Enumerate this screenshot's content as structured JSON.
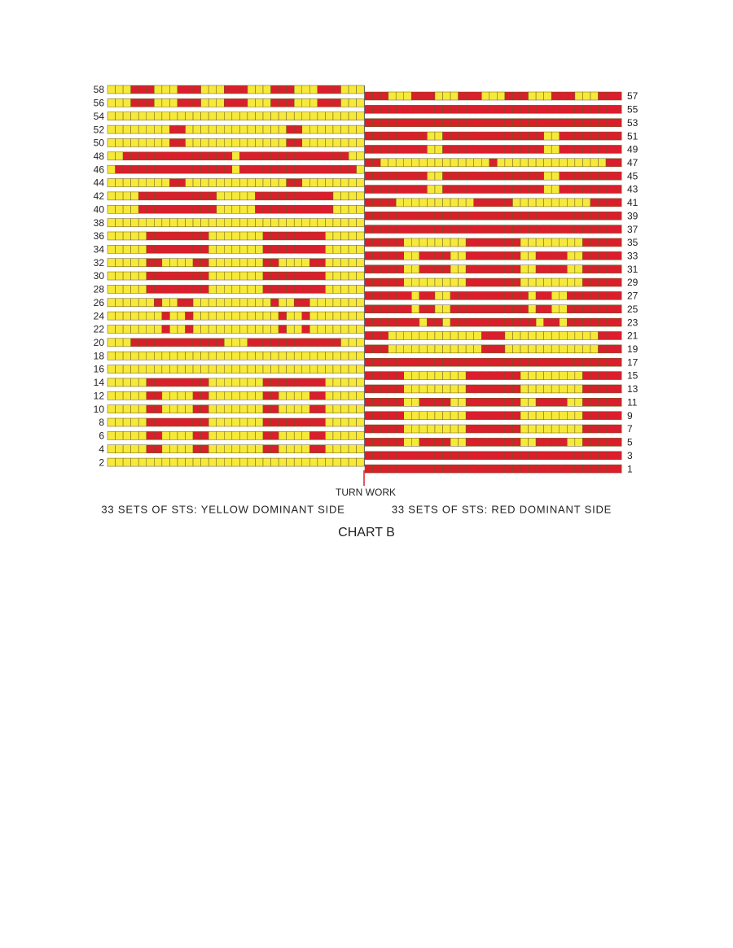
{
  "colors": {
    "Y": "#f6e93a",
    "R": "#d91f2c"
  },
  "left": {
    "caption": "33 SETS OF  STS: YELLOW DOMINANT SIDE",
    "rows": [
      {
        "label": "58",
        "cells": "YYYRRRYYYRRRYYYRRRYYYRRRYYYRRRYYY"
      },
      {
        "label": "56",
        "cells": "YYYRRRYYYRRRYYYRRRYYYRRRYYYRRRYYY"
      },
      {
        "label": "54",
        "cells": "YYYYYYYYYYYYYYYYYYYYYYYYYYYYYYYYY"
      },
      {
        "label": "52",
        "cells": "YYYYYYYYRRYYYYYYYYYYYYYRRYYYYYYYY"
      },
      {
        "label": "50",
        "cells": "YYYYYYYYRRYYYYYYYYYYYYYRRYYYYYYYY"
      },
      {
        "label": "48",
        "cells": "YYRRRRRRRRRRRRRRYRRRRRRRRRRRRRRYY"
      },
      {
        "label": "46",
        "cells": "YRRRRRRRRRRRRRRRYRRRRRRRRRRRRRRRY"
      },
      {
        "label": "44",
        "cells": "YYYYYYYYRRYYYYYYYYYYYYYRRYYYYYYYY"
      },
      {
        "label": "42",
        "cells": "YYYYRRRRRRRRRRYYYYYRRRRRRRRRRYYYY"
      },
      {
        "label": "40",
        "cells": "YYYYRRRRRRRRRRYYYYYRRRRRRRRRRYYYY"
      },
      {
        "label": "38",
        "cells": "YYYYYYYYYYYYYYYYYYYYYYYYYYYYYYYYY"
      },
      {
        "label": "36",
        "cells": "YYYYYRRRRRRRRYYYYYYYRRRRRRRRYYYYY"
      },
      {
        "label": "34",
        "cells": "YYYYYRRRRRRRRYYYYYYYRRRRRRRRYYYYY"
      },
      {
        "label": "32",
        "cells": "YYYYYRRYYYYRRYYYYYYYRRYYYYRRYYYYY"
      },
      {
        "label": "30",
        "cells": "YYYYYRRRRRRRRYYYYYYYRRRRRRRRYYYYY"
      },
      {
        "label": "28",
        "cells": "YYYYYRRRRRRRRYYYYYYYRRRRRRRRYYYYY"
      },
      {
        "label": "26",
        "cells": "YYYYYYRYYRRYYYYYYYYYYRYYRRYYYYYYY"
      },
      {
        "label": "24",
        "cells": "YYYYYYYRYYRYYYYYYYYYYYRYYRYYYYYYY"
      },
      {
        "label": "22",
        "cells": "YYYYYYYRYYRYYYYYYYYYYYRYYRYYYYYYY"
      },
      {
        "label": "20",
        "cells": "YYYRRRRRRRRRRRRYYYRRRRRRRRRRRRYYY"
      },
      {
        "label": "18",
        "cells": "YYYYYYYYYYYYYYYYYYYYYYYYYYYYYYYYY"
      },
      {
        "label": "16",
        "cells": "YYYYYYYYYYYYYYYYYYYYYYYYYYYYYYYYY"
      },
      {
        "label": "14",
        "cells": "YYYYYRRRRRRRRYYYYYYYRRRRRRRRYYYYY"
      },
      {
        "label": "12",
        "cells": "YYYYYRRYYYYRRYYYYYYYRRYYYYRRYYYYY"
      },
      {
        "label": "10",
        "cells": "YYYYYRRYYYYRRYYYYYYYRRYYYYRRYYYYY"
      },
      {
        "label": "8",
        "cells": "YYYYYRRRRRRRRYYYYYYYRRRRRRRRYYYYY"
      },
      {
        "label": "6",
        "cells": "YYYYYRRYYYYRRYYYYYYYRRYYYYRRYYYYY"
      },
      {
        "label": "4",
        "cells": "YYYYYRRYYYYRRYYYYYYYRRYYYYRRYYYYY"
      },
      {
        "label": "2",
        "cells": "YYYYYYYYYYYYYYYYYYYYYYYYYYYYYYYYY"
      }
    ]
  },
  "right": {
    "caption": "33 SETS OF  STS: RED DOMINANT SIDE",
    "rows": [
      {
        "label": "57",
        "cells": "RRRYYYRRRYYYRRRYYYRRRYYYRRRYYYRRR"
      },
      {
        "label": "55",
        "cells": "RRRRRRRRRRRRRRRRRRRRRRRRRRRRRRRRR"
      },
      {
        "label": "53",
        "cells": "RRRRRRRRRRRRRRRRRRRRRRRRRRRRRRRRR"
      },
      {
        "label": "51",
        "cells": "RRRRRRRRYYRRRRRRRRRRRRRYYRRRRRRRR"
      },
      {
        "label": "49",
        "cells": "RRRRRRRRYYRRRRRRRRRRRRRYYRRRRRRRR"
      },
      {
        "label": "47",
        "cells": "RRYYYYYYYYYYYYYYRYYYYYYYYYYYYYYRR"
      },
      {
        "label": "45",
        "cells": "RRRRRRRRYYRRRRRRRRRRRRRYYRRRRRRRR"
      },
      {
        "label": "43",
        "cells": "RRRRRRRRYYRRRRRRRRRRRRRYYRRRRRRRR"
      },
      {
        "label": "41",
        "cells": "RRRRYYYYYYYYYYRRRRRYYYYYYYYYYRRRR"
      },
      {
        "label": "39",
        "cells": "RRRRRRRRRRRRRRRRRRRRRRRRRRRRRRRRR"
      },
      {
        "label": "37",
        "cells": "RRRRRRRRRRRRRRRRRRRRRRRRRRRRRRRRR"
      },
      {
        "label": "35",
        "cells": "RRRRRYYYYYYYYRRRRRRRYYYYYYYYRRRRR"
      },
      {
        "label": "33",
        "cells": "RRRRRYYRRRRYYRRRRRRRYYRRRRYYRRRRR"
      },
      {
        "label": "31",
        "cells": "RRRRRYYRRRRYYRRRRRRRYYRRRRYYRRRRR"
      },
      {
        "label": "29",
        "cells": "RRRRRYYYYYYYYRRRRRRRYYYYYYYYRRRRR"
      },
      {
        "label": "27",
        "cells": "RRRRRRYRRYYRRRRRRRRRRYRRYYRRRRRRR"
      },
      {
        "label": "25",
        "cells": "RRRRRRYRRYYRRRRRRRRRRYRRYYRRRRRRR"
      },
      {
        "label": "23",
        "cells": "RRRRRRRYRRYRRRRRRRRRRRYRRYRRRRRRR"
      },
      {
        "label": "21",
        "cells": "RRRYYYYYYYYYYYYRRRYYYYYYYYYYYYRRR"
      },
      {
        "label": "19",
        "cells": "RRRYYYYYYYYYYYYRRRYYYYYYYYYYYYRRR"
      },
      {
        "label": "17",
        "cells": "RRRRRRRRRRRRRRRRRRRRRRRRRRRRRRRRR"
      },
      {
        "label": "15",
        "cells": "RRRRRYYYYYYYYRRRRRRRYYYYYYYYRRRRR"
      },
      {
        "label": "13",
        "cells": "RRRRRYYYYYYYYRRRRRRRYYYYYYYYRRRRR"
      },
      {
        "label": "11",
        "cells": "RRRRRYYRRRRYYRRRRRRRYYRRRRYYRRRRR"
      },
      {
        "label": "9",
        "cells": "RRRRRYYYYYYYYRRRRRRRYYYYYYYYRRRRR"
      },
      {
        "label": "7",
        "cells": "RRRRRYYYYYYYYRRRRRRRYYYYYYYYRRRRR"
      },
      {
        "label": "5",
        "cells": "RRRRRYYRRRRYYRRRRRRRYYRRRRYYRRRRR"
      },
      {
        "label": "3",
        "cells": "RRRRRRRRRRRRRRRRRRRRRRRRRRRRRRRRR"
      },
      {
        "label": "1",
        "cells": "RRRRRRRRRRRRRRRRRRRRRRRRRRRRRRRRR"
      }
    ]
  },
  "turn_label": "TURN WORK",
  "title": "CHART B"
}
